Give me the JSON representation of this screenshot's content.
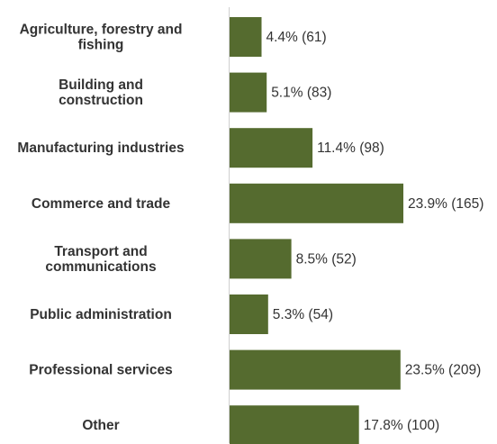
{
  "chart_data": {
    "type": "bar",
    "orientation": "horizontal",
    "bar_color": "#556b2f",
    "axis_color": "#cfcfcf",
    "label_color": "#333333",
    "title": "",
    "xlabel": "",
    "ylabel": "",
    "grid": false,
    "xlim": [
      0,
      23.9
    ],
    "categories": [
      [
        "Agriculture, forestry and",
        "fishing"
      ],
      [
        "Building and",
        "construction"
      ],
      [
        "Manufacturing industries"
      ],
      [
        "Commerce and trade"
      ],
      [
        "Transport and",
        "communications"
      ],
      [
        "Public administration"
      ],
      [
        "Professional services"
      ],
      [
        "Other"
      ]
    ],
    "values": [
      4.4,
      5.1,
      11.4,
      23.9,
      8.5,
      5.3,
      23.5,
      17.8
    ],
    "counts": [
      61,
      83,
      98,
      165,
      52,
      54,
      209,
      100
    ],
    "data_labels": [
      "4.4% (61)",
      "5.1% (83)",
      "11.4% (98)",
      "23.9% (165)",
      "8.5% (52)",
      "5.3% (54)",
      "23.5% (209)",
      "17.8% (100)"
    ]
  }
}
